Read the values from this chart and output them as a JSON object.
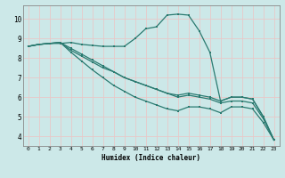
{
  "xlabel": "Humidex (Indice chaleur)",
  "background_color": "#cce8e8",
  "grid_color": "#e8c8c8",
  "line_color": "#2a7a70",
  "xlim": [
    -0.5,
    23.5
  ],
  "ylim": [
    3.5,
    10.7
  ],
  "xticks": [
    0,
    1,
    2,
    3,
    4,
    5,
    6,
    7,
    8,
    9,
    10,
    11,
    12,
    13,
    14,
    15,
    16,
    17,
    18,
    19,
    20,
    21,
    22,
    23
  ],
  "yticks": [
    4,
    5,
    6,
    7,
    8,
    9,
    10
  ],
  "series1": [
    [
      0,
      8.6
    ],
    [
      1,
      8.7
    ],
    [
      2,
      8.75
    ],
    [
      3,
      8.75
    ],
    [
      4,
      8.8
    ],
    [
      5,
      8.7
    ],
    [
      6,
      8.65
    ],
    [
      7,
      8.6
    ],
    [
      8,
      8.6
    ],
    [
      9,
      8.6
    ],
    [
      10,
      9.0
    ],
    [
      11,
      9.5
    ],
    [
      12,
      9.6
    ],
    [
      13,
      10.2
    ],
    [
      14,
      10.25
    ],
    [
      15,
      10.2
    ],
    [
      16,
      9.4
    ],
    [
      17,
      8.3
    ],
    [
      18,
      5.8
    ],
    [
      19,
      6.0
    ],
    [
      20,
      6.0
    ],
    [
      21,
      5.9
    ],
    [
      22,
      5.0
    ],
    [
      23,
      3.8
    ]
  ],
  "series2": [
    [
      0,
      8.6
    ],
    [
      1,
      8.7
    ],
    [
      2,
      8.75
    ],
    [
      3,
      8.8
    ],
    [
      4,
      8.5
    ],
    [
      5,
      8.2
    ],
    [
      6,
      7.9
    ],
    [
      7,
      7.6
    ],
    [
      8,
      7.3
    ],
    [
      9,
      7.0
    ],
    [
      10,
      6.8
    ],
    [
      11,
      6.6
    ],
    [
      12,
      6.4
    ],
    [
      13,
      6.2
    ],
    [
      14,
      6.1
    ],
    [
      15,
      6.2
    ],
    [
      16,
      6.1
    ],
    [
      17,
      6.0
    ],
    [
      18,
      5.8
    ],
    [
      19,
      6.0
    ],
    [
      20,
      6.0
    ],
    [
      21,
      5.9
    ],
    [
      22,
      5.0
    ],
    [
      23,
      3.8
    ]
  ],
  "series3": [
    [
      0,
      8.6
    ],
    [
      1,
      8.7
    ],
    [
      2,
      8.75
    ],
    [
      3,
      8.8
    ],
    [
      4,
      8.3
    ],
    [
      5,
      7.85
    ],
    [
      6,
      7.4
    ],
    [
      7,
      7.0
    ],
    [
      8,
      6.6
    ],
    [
      9,
      6.3
    ],
    [
      10,
      6.0
    ],
    [
      11,
      5.8
    ],
    [
      12,
      5.6
    ],
    [
      13,
      5.4
    ],
    [
      14,
      5.3
    ],
    [
      15,
      5.5
    ],
    [
      16,
      5.5
    ],
    [
      17,
      5.4
    ],
    [
      18,
      5.2
    ],
    [
      19,
      5.5
    ],
    [
      20,
      5.5
    ],
    [
      21,
      5.4
    ],
    [
      22,
      4.7
    ],
    [
      23,
      3.8
    ]
  ],
  "series4": [
    [
      0,
      8.6
    ],
    [
      1,
      8.7
    ],
    [
      2,
      8.75
    ],
    [
      3,
      8.8
    ],
    [
      4,
      8.4
    ],
    [
      5,
      8.1
    ],
    [
      6,
      7.8
    ],
    [
      7,
      7.5
    ],
    [
      8,
      7.3
    ],
    [
      9,
      7.0
    ],
    [
      10,
      6.8
    ],
    [
      11,
      6.6
    ],
    [
      12,
      6.4
    ],
    [
      13,
      6.2
    ],
    [
      14,
      6.0
    ],
    [
      15,
      6.1
    ],
    [
      16,
      6.0
    ],
    [
      17,
      5.9
    ],
    [
      18,
      5.7
    ],
    [
      19,
      5.8
    ],
    [
      20,
      5.8
    ],
    [
      21,
      5.7
    ],
    [
      22,
      4.9
    ],
    [
      23,
      3.8
    ]
  ]
}
